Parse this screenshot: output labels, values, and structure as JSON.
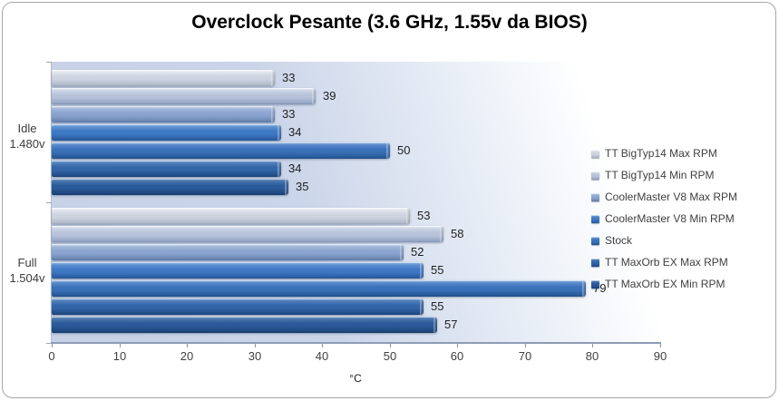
{
  "chart_data": {
    "type": "bar",
    "orientation": "horizontal",
    "title": "Overclock Pesante (3.6 GHz, 1.55v da BIOS)",
    "xlabel": "°C",
    "xlim": [
      0,
      90
    ],
    "x_ticks": [
      0,
      10,
      20,
      30,
      40,
      50,
      60,
      70,
      80,
      90
    ],
    "grid": false,
    "legend_position": "right",
    "categories": [
      "Idle 1.480v",
      "Full 1.504v"
    ],
    "category_labels": [
      {
        "line1": "Idle",
        "line2": "1.480v"
      },
      {
        "line1": "Full",
        "line2": "1.504v"
      }
    ],
    "series": [
      {
        "name": "TT BigTyp14 Max RPM",
        "values": [
          33,
          53
        ]
      },
      {
        "name": "TT BigTyp14 Min RPM",
        "values": [
          39,
          58
        ]
      },
      {
        "name": "CoolerMaster V8 Max RPM",
        "values": [
          33,
          52
        ]
      },
      {
        "name": "CoolerMaster V8 Min RPM",
        "values": [
          34,
          55
        ]
      },
      {
        "name": "Stock",
        "values": [
          50,
          79
        ]
      },
      {
        "name": "TT MaxOrb EX Max RPM",
        "values": [
          34,
          55
        ]
      },
      {
        "name": "TT MaxOrb EX Min RPM",
        "values": [
          35,
          57
        ]
      }
    ],
    "data_labels_shown": true
  },
  "series_colors": [
    {
      "hi": "#f6f8fb",
      "up": "#dfe4ec",
      "mid": "#cdd3df",
      "lo": "#b4bccb",
      "edge": "#9ca6b8"
    },
    {
      "hi": "#edf1f7",
      "up": "#ccd5e5",
      "mid": "#b7c3da",
      "lo": "#98a8c6",
      "edge": "#8295b8"
    },
    {
      "hi": "#cfdcee",
      "up": "#a3b8d9",
      "mid": "#8ba4cf",
      "lo": "#6c87b3",
      "edge": "#5a77a6"
    },
    {
      "hi": "#96bce6",
      "up": "#5f91d2",
      "mid": "#3f79c4",
      "lo": "#2c60a8",
      "edge": "#235390"
    },
    {
      "hi": "#8db2dd",
      "up": "#588acc",
      "mid": "#3a71b9",
      "lo": "#285a9b",
      "edge": "#1f4d85"
    },
    {
      "hi": "#83a6d1",
      "up": "#4f7fba",
      "mid": "#3265a8",
      "lo": "#224e8a",
      "edge": "#1a4174"
    },
    {
      "hi": "#7899c4",
      "up": "#4674ad",
      "mid": "#2b5a9a",
      "lo": "#1d477e",
      "edge": "#163a69"
    }
  ]
}
